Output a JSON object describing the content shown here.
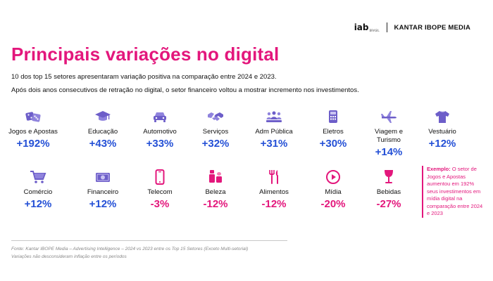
{
  "header": {
    "iab_logo": "iab",
    "iab_small": "BRASIL",
    "kantar_logo": "KANTAR IBOPE MEDIA"
  },
  "title": "Principais variações no digital",
  "subtitle_1": "10 dos top 15 setores apresentaram variação positiva na comparação entre 2024 e 2023.",
  "subtitle_2": "Após dois anos consecutivos de retração no digital, o setor financeiro voltou a mostrar incremento nos investimentos.",
  "colors": {
    "pink": "#e3177c",
    "icon_purple": "#6d5ec9",
    "positive_blue": "#2450d6"
  },
  "sectors": [
    {
      "name": "Jogos e Apostas",
      "value": "+192%",
      "icon": "dice-icon"
    },
    {
      "name": "Educação",
      "value": "+43%",
      "icon": "graduation-cap-icon"
    },
    {
      "name": "Automotivo",
      "value": "+33%",
      "icon": "car-icon"
    },
    {
      "name": "Serviços",
      "value": "+32%",
      "icon": "handshake-icon"
    },
    {
      "name": "Adm Pública",
      "value": "+31%",
      "icon": "people-group-icon"
    },
    {
      "name": "Eletros",
      "value": "+30%",
      "icon": "calculator-icon"
    },
    {
      "name": "Viagem e Turismo",
      "value": "+14%",
      "icon": "airplane-icon"
    },
    {
      "name": "Vestuário",
      "value": "+12%",
      "icon": "tshirt-icon"
    },
    {
      "name": "Comércio",
      "value": "+12%",
      "icon": "shopping-cart-icon"
    },
    {
      "name": "Financeiro",
      "value": "+12%",
      "icon": "banknote-icon"
    },
    {
      "name": "Telecom",
      "value": "-3%",
      "icon": "smartphone-icon"
    },
    {
      "name": "Beleza",
      "value": "-12%",
      "icon": "cosmetics-icon"
    },
    {
      "name": "Alimentos",
      "value": "-12%",
      "icon": "cutlery-icon"
    },
    {
      "name": "Mídia",
      "value": "-20%",
      "icon": "play-button-icon"
    },
    {
      "name": "Bebidas",
      "value": "-27%",
      "icon": "wine-glass-icon"
    }
  ],
  "example": {
    "label": "Exemplo:",
    "text": "O setor de Jogos e Apostas aumentou em 192% seus investimentos em mídia digital na comparação entre 2024 e 2023"
  },
  "footer": {
    "source": "Fonte: Kantar IBOPE Media – Advertising Intelligence – 2024 vs 2023 entre os Top 15 Setores (Exceto Multi-setorial)",
    "note": "Variações não desconsideram inflação entre os períodos"
  }
}
